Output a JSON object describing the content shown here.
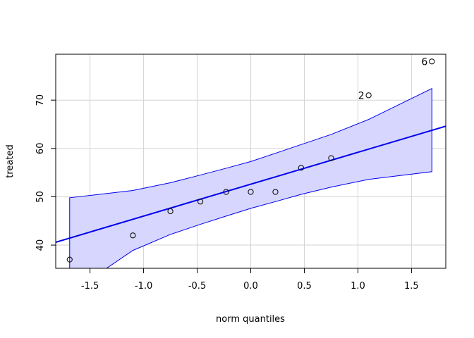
{
  "chart_data": {
    "type": "scatter",
    "title": "",
    "xlabel": "norm quantiles",
    "ylabel": "treated",
    "xlim": [
      -1.82,
      1.82
    ],
    "ylim": [
      35.2,
      79.5
    ],
    "grid": true,
    "x_ticks": [
      -1.5,
      -1.0,
      -0.5,
      0.0,
      0.5,
      1.0,
      1.5
    ],
    "x_tick_labels": [
      "-1.5",
      "-1.0",
      "-0.5",
      "0.0",
      "0.5",
      "1.0",
      "1.5"
    ],
    "y_ticks": [
      40,
      50,
      60,
      70
    ],
    "y_tick_labels": [
      "40",
      "50",
      "60",
      "70"
    ],
    "points": [
      {
        "x": -1.69,
        "y": 37
      },
      {
        "x": -1.1,
        "y": 42
      },
      {
        "x": -0.75,
        "y": 47
      },
      {
        "x": -0.47,
        "y": 49
      },
      {
        "x": -0.23,
        "y": 51
      },
      {
        "x": 0.0,
        "y": 51
      },
      {
        "x": 0.23,
        "y": 51
      },
      {
        "x": 0.47,
        "y": 56
      },
      {
        "x": 0.75,
        "y": 58
      },
      {
        "x": 1.1,
        "y": 71,
        "label": "2"
      },
      {
        "x": 1.69,
        "y": 78,
        "label": "6"
      }
    ],
    "reference_line": {
      "intercept": 52.6,
      "slope": 6.6,
      "color": "#0000ee"
    },
    "envelope": {
      "color": "#0000ee",
      "fill": "#d6d6ff",
      "x": [
        -1.69,
        -1.1,
        -0.75,
        -0.47,
        -0.23,
        0.0,
        0.23,
        0.47,
        0.75,
        1.1,
        1.69
      ],
      "upper": [
        49.8,
        51.3,
        52.9,
        54.5,
        55.9,
        57.3,
        59.0,
        60.8,
        62.9,
        66.0,
        72.4
      ],
      "lower": [
        30.0,
        38.9,
        42.2,
        44.3,
        46.0,
        47.6,
        49.0,
        50.5,
        52.0,
        53.6,
        55.2
      ]
    }
  }
}
